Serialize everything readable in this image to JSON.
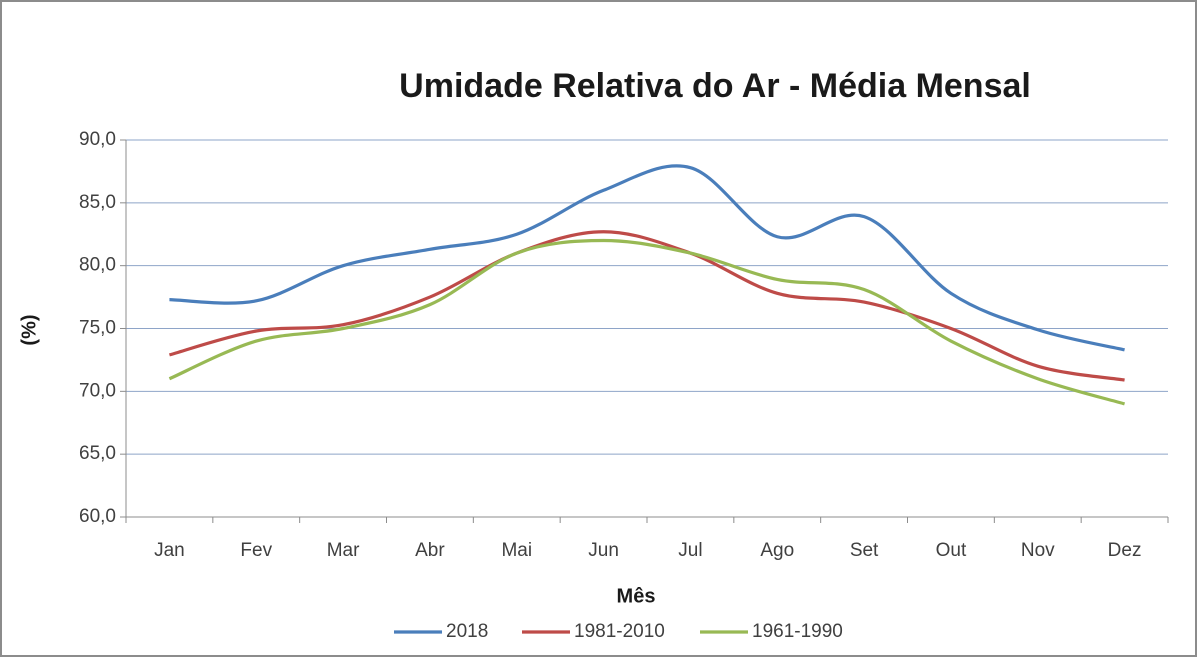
{
  "chart_data": {
    "type": "line",
    "title": "Umidade Relativa do Ar - Média Mensal",
    "x_label": "Mês",
    "y_label": "(%)",
    "categories": [
      "Jan",
      "Fev",
      "Mar",
      "Abr",
      "Mai",
      "Jun",
      "Jul",
      "Ago",
      "Set",
      "Out",
      "Nov",
      "Dez"
    ],
    "series": [
      {
        "name": "2018",
        "color": "#4a7ebb",
        "values": [
          77.3,
          77.2,
          80.0,
          81.3,
          82.5,
          86.0,
          87.8,
          82.3,
          83.9,
          77.8,
          74.9,
          73.3
        ]
      },
      {
        "name": "1981-2010",
        "color": "#be4b48",
        "values": [
          72.9,
          74.8,
          75.3,
          77.5,
          81.0,
          82.7,
          81.0,
          77.8,
          77.1,
          75.0,
          72.0,
          70.9
        ]
      },
      {
        "name": "1961-1990",
        "color": "#98b954",
        "values": [
          71.0,
          74.0,
          75.0,
          76.9,
          81.0,
          82.0,
          81.0,
          78.9,
          78.1,
          74.0,
          71.0,
          69.0
        ]
      }
    ],
    "ylim": [
      60,
      90
    ],
    "yticks": [
      {
        "value": 60,
        "label": "60,0"
      },
      {
        "value": 65,
        "label": "65,0"
      },
      {
        "value": 70,
        "label": "70,0"
      },
      {
        "value": 75,
        "label": "75,0"
      },
      {
        "value": 80,
        "label": "80,0"
      },
      {
        "value": 85,
        "label": "85,0"
      },
      {
        "value": 90,
        "label": "90,0"
      }
    ],
    "grid": true,
    "legend": "bottom"
  }
}
